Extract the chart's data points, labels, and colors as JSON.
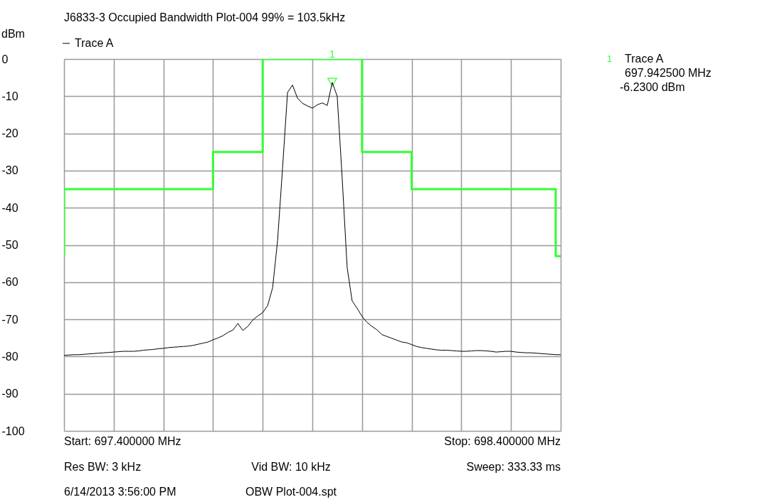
{
  "chart_data": {
    "type": "line",
    "title": "J6833-3 Occupied Bandwidth Plot-004 99% = 103.5kHz",
    "ylabel": "dBm",
    "categories": [
      null,
      null,
      null,
      null,
      null,
      null,
      null,
      null,
      null,
      null,
      null,
      null,
      null,
      null,
      null,
      null,
      null,
      null,
      null,
      null,
      null,
      null,
      null,
      null,
      null,
      null,
      null,
      null,
      null,
      null,
      null,
      null,
      null,
      null,
      null,
      null,
      null,
      null,
      null,
      null,
      null,
      null,
      null,
      null,
      null,
      null,
      null,
      null,
      null,
      null,
      null,
      null,
      null,
      null,
      null,
      null,
      null,
      null,
      null,
      null,
      null,
      null,
      null,
      null,
      null,
      null,
      null,
      null,
      null,
      null,
      null,
      null,
      null,
      null,
      null,
      null,
      null,
      null,
      null,
      null,
      null,
      null,
      null,
      null,
      null,
      null,
      null,
      null,
      null,
      null,
      null,
      null,
      null,
      null,
      null,
      null,
      null,
      null,
      null,
      null,
      null
    ],
    "ylim": [
      -100,
      0
    ],
    "yticks": [
      0,
      -10,
      -20,
      -30,
      -40,
      -50,
      -60,
      -70,
      -80,
      -90,
      -100
    ],
    "tick_labels": "y",
    "grid": true,
    "legend": "top left",
    "line_style": "solid",
    "marker": "none",
    "series": [
      {
        "type": "step",
        "color": "#33ff33",
        "values": [
          -53,
          -35,
          -35,
          -35,
          -35,
          -35,
          -35,
          -35,
          -35,
          -35,
          -35,
          -35,
          -35,
          -35,
          -35,
          -35,
          -35,
          -35,
          -35,
          -35,
          -35,
          -35,
          -35,
          -35,
          -35,
          -35,
          -35,
          -35,
          -35,
          -35,
          -35,
          -25,
          -25,
          -25,
          -25,
          -25,
          -25,
          -25,
          -25,
          -25,
          -25,
          0,
          0,
          0,
          0,
          0,
          0,
          0,
          0,
          0,
          0,
          0,
          0,
          0,
          0,
          0,
          0,
          0,
          0,
          0,
          0,
          -25,
          -25,
          -25,
          -25,
          -25,
          -25,
          -25,
          -25,
          -25,
          -25,
          -35,
          -35,
          -35,
          -35,
          -35,
          -35,
          -35,
          -35,
          -35,
          -35,
          -35,
          -35,
          -35,
          -35,
          -35,
          -35,
          -35,
          -35,
          -35,
          -35,
          -35,
          -35,
          -35,
          -35,
          -35,
          -35,
          -35,
          -35,
          -35,
          -53
        ]
      },
      {
        "type": "scatter",
        "marker": "triangle",
        "color": "#33ff33",
        "values": [
          null,
          null,
          null,
          null,
          null,
          null,
          null,
          null,
          null,
          null,
          null,
          null,
          null,
          null,
          null,
          null,
          null,
          null,
          null,
          null,
          null,
          null,
          null,
          null,
          null,
          null,
          null,
          null,
          null,
          null,
          null,
          null,
          null,
          null,
          null,
          null,
          null,
          null,
          null,
          null,
          null,
          null,
          null,
          null,
          null,
          null,
          null,
          null,
          null,
          null,
          null,
          null,
          null,
          null,
          -6.23,
          null,
          null,
          null,
          null,
          null,
          null,
          null,
          null,
          null,
          null,
          null,
          null,
          null,
          null,
          null,
          null,
          null,
          null,
          null,
          null,
          null,
          null,
          null,
          null,
          null,
          null,
          null,
          null,
          null,
          null,
          null,
          null,
          null,
          null,
          null,
          null,
          null,
          null,
          null,
          null,
          null,
          null,
          null,
          null,
          null,
          null
        ]
      },
      {
        "name": "Trace A",
        "color": "#000000",
        "values": [
          -79.7,
          -79.6,
          -79.5,
          -79.5,
          -79.4,
          -79.3,
          -79.2,
          -79.1,
          -79.0,
          -78.9,
          -78.8,
          -78.7,
          -78.6,
          -78.6,
          -78.6,
          -78.5,
          -78.3,
          -78.2,
          -78.1,
          -77.9,
          -77.8,
          -77.6,
          -77.5,
          -77.4,
          -77.3,
          -77.2,
          -77.0,
          -76.7,
          -76.4,
          -76.1,
          -75.5,
          -75.0,
          -74.4,
          -73.5,
          -72.9,
          -71.1,
          -73.0,
          -71.9,
          -70.2,
          -69.1,
          -68.2,
          -66.3,
          -61.5,
          -48.8,
          -29.3,
          -9.0,
          -7.0,
          -10.5,
          -11.9,
          -12.6,
          -13.2,
          -12.3,
          -11.8,
          -12.5,
          -6.3,
          -10.0,
          -31.9,
          -56.0,
          -65.0,
          -67.0,
          -69.2,
          -70.8,
          -71.9,
          -72.8,
          -74.1,
          -74.6,
          -75.1,
          -75.6,
          -76.1,
          -76.3,
          -76.8,
          -77.3,
          -77.6,
          -77.8,
          -78.0,
          -78.2,
          -78.3,
          -78.3,
          -78.4,
          -78.5,
          -78.6,
          -78.6,
          -78.5,
          -78.4,
          -78.4,
          -78.5,
          -78.6,
          -78.8,
          -78.7,
          -78.6,
          -78.6,
          -78.8,
          -78.9,
          -79.0,
          -79.0,
          -79.1,
          -79.2,
          -79.3,
          -79.4,
          -79.5,
          -79.5
        ]
      }
    ],
    "annotations": [
      "1",
      "1",
      "Trace A",
      "697.942500 MHz",
      "-6.2300 dBm",
      "Start: 697.400000 MHz",
      "Stop: 698.400000 MHz",
      "Res BW: 3 kHz",
      "Vid BW: 10 kHz",
      "Sweep: 333.33 ms",
      "6/14/2013 3:56:00 PM",
      "OBW Plot-004.spt"
    ]
  }
}
